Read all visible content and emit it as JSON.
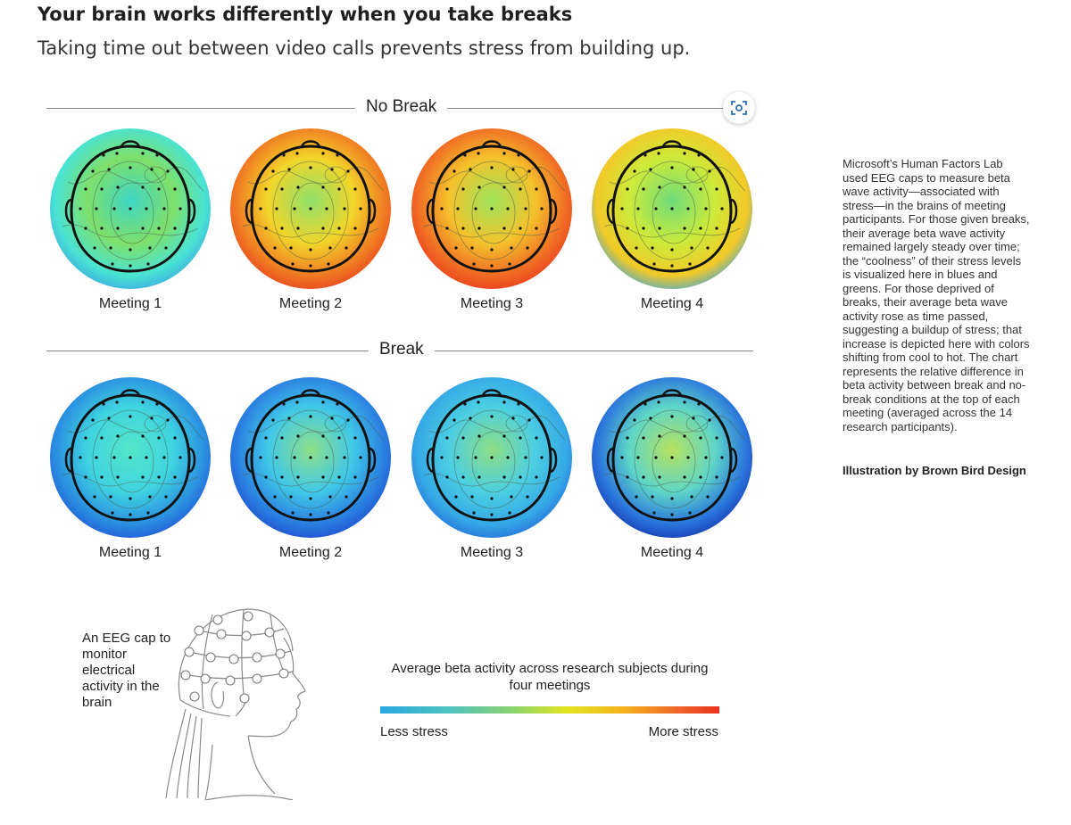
{
  "header": {
    "title": "Your brain works differently when you take breaks",
    "subtitle": "Taking time out between video calls prevents stress from building up."
  },
  "sections": [
    {
      "label": "No Break",
      "meetings": [
        {
          "label": "Meeting 1",
          "colors": [
            "#3ed6c6",
            "#7fe06a",
            "#49e3d4",
            "#3aa0e0"
          ]
        },
        {
          "label": "Meeting 2",
          "colors": [
            "#8fe06a",
            "#f2d52a",
            "#f07a22",
            "#e63a1e"
          ]
        },
        {
          "label": "Meeting 3",
          "colors": [
            "#9ee45a",
            "#f4c22c",
            "#f06a24",
            "#e8361c"
          ]
        },
        {
          "label": "Meeting 4",
          "colors": [
            "#6fdc7a",
            "#cdea3a",
            "#f2c928",
            "#3aa6e0"
          ]
        }
      ]
    },
    {
      "label": "Break",
      "meetings": [
        {
          "label": "Meeting 1",
          "colors": [
            "#55e6c8",
            "#3fd4e0",
            "#2a8ee0",
            "#1f4fd6"
          ]
        },
        {
          "label": "Meeting 2",
          "colors": [
            "#8ee08a",
            "#40c8e8",
            "#2a7de0",
            "#1d45cc"
          ]
        },
        {
          "label": "Meeting 3",
          "colors": [
            "#8ede84",
            "#4ccfe2",
            "#35a8e6",
            "#2266d8"
          ]
        },
        {
          "label": "Meeting 4",
          "colors": [
            "#b6e25e",
            "#5ed6c8",
            "#2a74dc",
            "#122fa8"
          ]
        }
      ]
    }
  ],
  "sidebar": {
    "text": "Microsoft’s Human Factors Lab used EEG caps to measure beta wave activity—associated with stress—in the brains of meeting participants. For those given breaks, their average beta wave activity remained largely steady over time; the “coolness” of their stress levels is visualized here in blues and greens. For those deprived of breaks, their average beta wave activity rose as time passed, suggesting a buildup of stress; that increase is depicted here with colors shifting from cool to hot. The chart represents the relative difference in beta activity between break and no-break conditions at the top of each meeting (averaged across the 14 research participants).",
    "credit": "Illustration by Brown Bird Design"
  },
  "eeg": {
    "caption": "An EEG cap to monitor electrical activity in the brain"
  },
  "scale": {
    "title": "Average beta activity across research subjects during four meetings",
    "low": "Less stress",
    "high": "More stress"
  },
  "icons": {
    "scan": "scan-focus-icon"
  }
}
